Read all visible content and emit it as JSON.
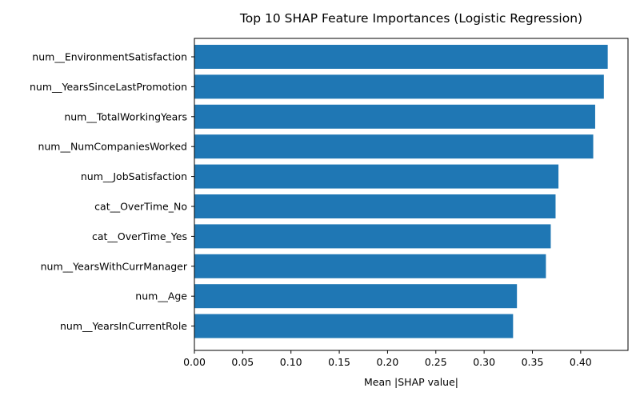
{
  "chart_data": {
    "type": "bar",
    "orientation": "horizontal",
    "title": "Top 10 SHAP Feature Importances (Logistic Regression)",
    "xlabel": "Mean |SHAP value|",
    "ylabel": "",
    "xlim": [
      0,
      0.449
    ],
    "xticks": [
      "0.00",
      "0.05",
      "0.10",
      "0.15",
      "0.20",
      "0.25",
      "0.30",
      "0.35",
      "0.40"
    ],
    "grid": false,
    "bar_color": "#1f77b4",
    "categories": [
      "num__EnvironmentSatisfaction",
      "num__YearsSinceLastPromotion",
      "num__TotalWorkingYears",
      "num__NumCompaniesWorked",
      "num__JobSatisfaction",
      "cat__OverTime_No",
      "cat__OverTime_Yes",
      "num__YearsWithCurrManager",
      "num__Age",
      "num__YearsInCurrentRole"
    ],
    "values": [
      0.428,
      0.424,
      0.415,
      0.413,
      0.377,
      0.374,
      0.369,
      0.364,
      0.334,
      0.33
    ]
  }
}
